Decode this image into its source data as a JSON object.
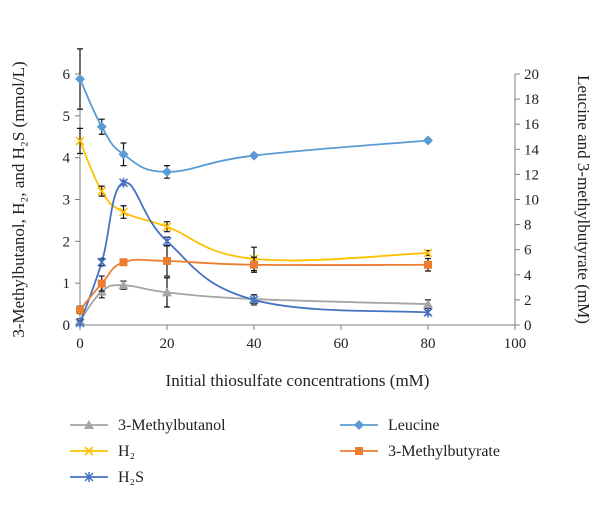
{
  "chart_data": {
    "type": "line",
    "xlabel": "Initial thiosulfate concentrations (mM)",
    "ylabel_left": "3-Methylbutanol, H₂, and H₂S (mmol/L)",
    "ylabel_right": "Leucine and 3-methylbutyrate (mM)",
    "xlim": [
      0,
      100
    ],
    "x_ticks": [
      0,
      20,
      40,
      60,
      80,
      100
    ],
    "ylim_left": [
      0,
      6
    ],
    "y_ticks_left": [
      0,
      1,
      2,
      3,
      4,
      5,
      6
    ],
    "ylim_right": [
      0,
      20
    ],
    "y_ticks_right": [
      0,
      2,
      4,
      6,
      8,
      10,
      12,
      14,
      16,
      18,
      20
    ],
    "grid": false,
    "legend_position": "bottom",
    "x": [
      0,
      5,
      10,
      20,
      40,
      80
    ],
    "series": [
      {
        "name": "3-Methylbutanol",
        "axis": "left",
        "color": "#a5a5a5",
        "marker": "triangle",
        "values": [
          0.1,
          0.8,
          0.95,
          0.78,
          0.62,
          0.5
        ],
        "errors": [
          0.05,
          0.15,
          0.1,
          0.35,
          0.1,
          0.1
        ]
      },
      {
        "name": "H₂",
        "axis": "left",
        "color": "#ffc000",
        "marker": "x",
        "values": [
          4.4,
          3.2,
          2.7,
          2.35,
          1.58,
          1.72
        ],
        "errors": [
          0.3,
          0.12,
          0.15,
          0.12,
          0.28,
          0.06
        ]
      },
      {
        "name": "H₂S",
        "axis": "left",
        "color": "#4472c4",
        "marker": "star",
        "values": [
          0.05,
          1.5,
          3.4,
          2.0,
          0.6,
          0.3
        ],
        "errors": [
          0.05,
          0.08,
          0.05,
          0.1,
          0.12,
          0.05
        ]
      },
      {
        "name": "Leucine",
        "axis": "right",
        "color": "#5b9bd5",
        "marker": "diamond",
        "values": [
          19.6,
          15.8,
          13.6,
          12.2,
          13.5,
          14.7
        ],
        "errors": [
          2.4,
          0.6,
          0.9,
          0.5,
          0.15,
          0.15
        ]
      },
      {
        "name": "3-Methylbutyrate",
        "axis": "right",
        "color": "#ed7d31",
        "marker": "square",
        "values": [
          1.2,
          3.3,
          5.0,
          5.1,
          4.8,
          4.8
        ],
        "errors": [
          0.3,
          0.6,
          0.2,
          1.2,
          0.6,
          0.5
        ]
      }
    ]
  }
}
